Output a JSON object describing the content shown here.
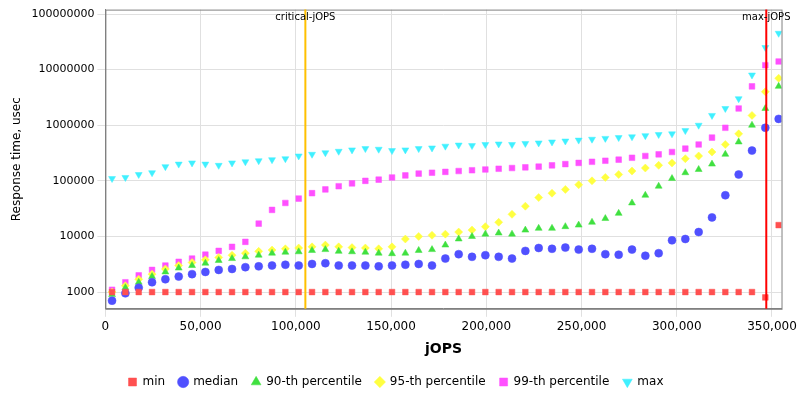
{
  "chart_data": {
    "type": "scatter",
    "x_label": "jOPS",
    "y_label": "Response time, usec",
    "log": "y",
    "grid": true,
    "legend": "bottom",
    "xlim": [
      0,
      355000
    ],
    "xticks": [
      0,
      {
        "value": 50000,
        "label": "50,000"
      },
      {
        "value": 100000,
        "label": "100,000"
      },
      {
        "value": 150000,
        "label": "150,000"
      },
      {
        "value": 200000,
        "label": "200,000"
      },
      {
        "value": 250000,
        "label": "250,000"
      },
      {
        "value": 300000,
        "label": "300,000"
      },
      {
        "value": 350000,
        "label": "350,000"
      }
    ],
    "ylim": [
      500,
      120000000
    ],
    "yticks": [
      1000,
      10000,
      100000,
      1000000,
      10000000,
      100000000
    ],
    "annotations": [
      {
        "type": "vline",
        "x": 105000,
        "label": "critical-jOPS",
        "color": "#ffc000"
      },
      {
        "type": "vline",
        "x": 347000,
        "label": "max-jOPS",
        "color": "#ff0000"
      }
    ],
    "x": [
      3500,
      10500,
      17500,
      24500,
      31500,
      38500,
      45500,
      52500,
      59500,
      66500,
      73500,
      80500,
      87500,
      94500,
      101500,
      108500,
      115500,
      122500,
      129500,
      136500,
      143500,
      150500,
      157500,
      164500,
      171500,
      178500,
      185500,
      192500,
      199500,
      206500,
      213500,
      220500,
      227500,
      234500,
      241500,
      248500,
      255500,
      262500,
      269500,
      276500,
      283500,
      290500,
      297500,
      304500,
      311500,
      318500,
      325500,
      332500,
      339500,
      346500,
      353500
    ],
    "series": [
      {
        "name": "min",
        "color": "#ff5050",
        "marker": "square",
        "values": [
          1000,
          1000,
          1000,
          1000,
          1000,
          1000,
          1000,
          1000,
          1000,
          1000,
          1000,
          1000,
          1000,
          1000,
          1000,
          1000,
          1000,
          1000,
          1000,
          1000,
          1000,
          1000,
          1000,
          1000,
          1000,
          1000,
          1000,
          1000,
          1000,
          1000,
          1000,
          1000,
          1000,
          1000,
          1000,
          1000,
          1000,
          1000,
          1000,
          1000,
          1000,
          1000,
          1000,
          1000,
          1000,
          1000,
          1000,
          1000,
          1000,
          800,
          16000
        ]
      },
      {
        "name": "median",
        "color": "#5050ff",
        "marker": "circle",
        "values": [
          700,
          950,
          1200,
          1500,
          1700,
          1900,
          2100,
          2300,
          2500,
          2600,
          2800,
          2900,
          3000,
          3100,
          3000,
          3200,
          3300,
          3000,
          3000,
          3000,
          2900,
          3000,
          3100,
          3200,
          3000,
          4000,
          4800,
          4300,
          4600,
          4300,
          4000,
          5500,
          6200,
          6000,
          6300,
          5800,
          6000,
          4800,
          4700,
          5800,
          4500,
          5000,
          8500,
          9000,
          12000,
          22000,
          55000,
          130000,
          350000,
          900000,
          1300000
        ]
      },
      {
        "name": "90-th percentile",
        "color": "#40e040",
        "marker": "triangle",
        "values": [
          900,
          1200,
          1500,
          1900,
          2300,
          2700,
          3000,
          3300,
          3700,
          4000,
          4300,
          4600,
          5000,
          5200,
          5300,
          5600,
          5800,
          5400,
          5300,
          5200,
          5000,
          4900,
          5000,
          5600,
          5800,
          7000,
          9000,
          10000,
          11000,
          11500,
          11000,
          13000,
          14000,
          14000,
          15000,
          16000,
          18000,
          21000,
          26000,
          40000,
          55000,
          80000,
          110000,
          140000,
          160000,
          200000,
          300000,
          500000,
          1000000,
          2000000,
          5000000
        ]
      },
      {
        "name": "95-th percentile",
        "color": "#ffff40",
        "marker": "diamond",
        "values": [
          1000,
          1300,
          1700,
          2100,
          2600,
          3000,
          3400,
          3800,
          4200,
          4600,
          5000,
          5400,
          5700,
          6000,
          6200,
          6500,
          7000,
          6500,
          6300,
          6200,
          6000,
          6500,
          9000,
          10000,
          10500,
          11000,
          12000,
          13000,
          15000,
          18000,
          25000,
          35000,
          50000,
          60000,
          70000,
          85000,
          100000,
          115000,
          130000,
          150000,
          170000,
          190000,
          210000,
          250000,
          280000,
          330000,
          450000,
          700000,
          1500000,
          4000000,
          7000000
        ]
      },
      {
        "name": "99-th percentile",
        "color": "#ff50ff",
        "marker": "square",
        "values": [
          1100,
          1500,
          2000,
          2500,
          3000,
          3500,
          4000,
          4700,
          5500,
          6500,
          8000,
          17000,
          30000,
          40000,
          48000,
          60000,
          70000,
          80000,
          90000,
          100000,
          105000,
          115000,
          125000,
          135000,
          140000,
          145000,
          150000,
          155000,
          160000,
          165000,
          170000,
          175000,
          180000,
          190000,
          200000,
          210000,
          220000,
          230000,
          240000,
          260000,
          280000,
          300000,
          330000,
          380000,
          450000,
          600000,
          900000,
          2000000,
          5000000,
          12000000,
          14000000
        ]
      },
      {
        "name": "max",
        "color": "#40f0ff",
        "marker": "triangle_down",
        "values": [
          110000,
          115000,
          130000,
          140000,
          180000,
          200000,
          210000,
          200000,
          190000,
          210000,
          220000,
          230000,
          240000,
          250000,
          280000,
          300000,
          320000,
          340000,
          360000,
          380000,
          370000,
          350000,
          360000,
          380000,
          390000,
          420000,
          440000,
          430000,
          450000,
          460000,
          450000,
          470000,
          480000,
          500000,
          520000,
          540000,
          560000,
          580000,
          600000,
          620000,
          650000,
          680000,
          700000,
          800000,
          1000000,
          1500000,
          2000000,
          3000000,
          8000000,
          25000000,
          45000000
        ]
      }
    ]
  }
}
